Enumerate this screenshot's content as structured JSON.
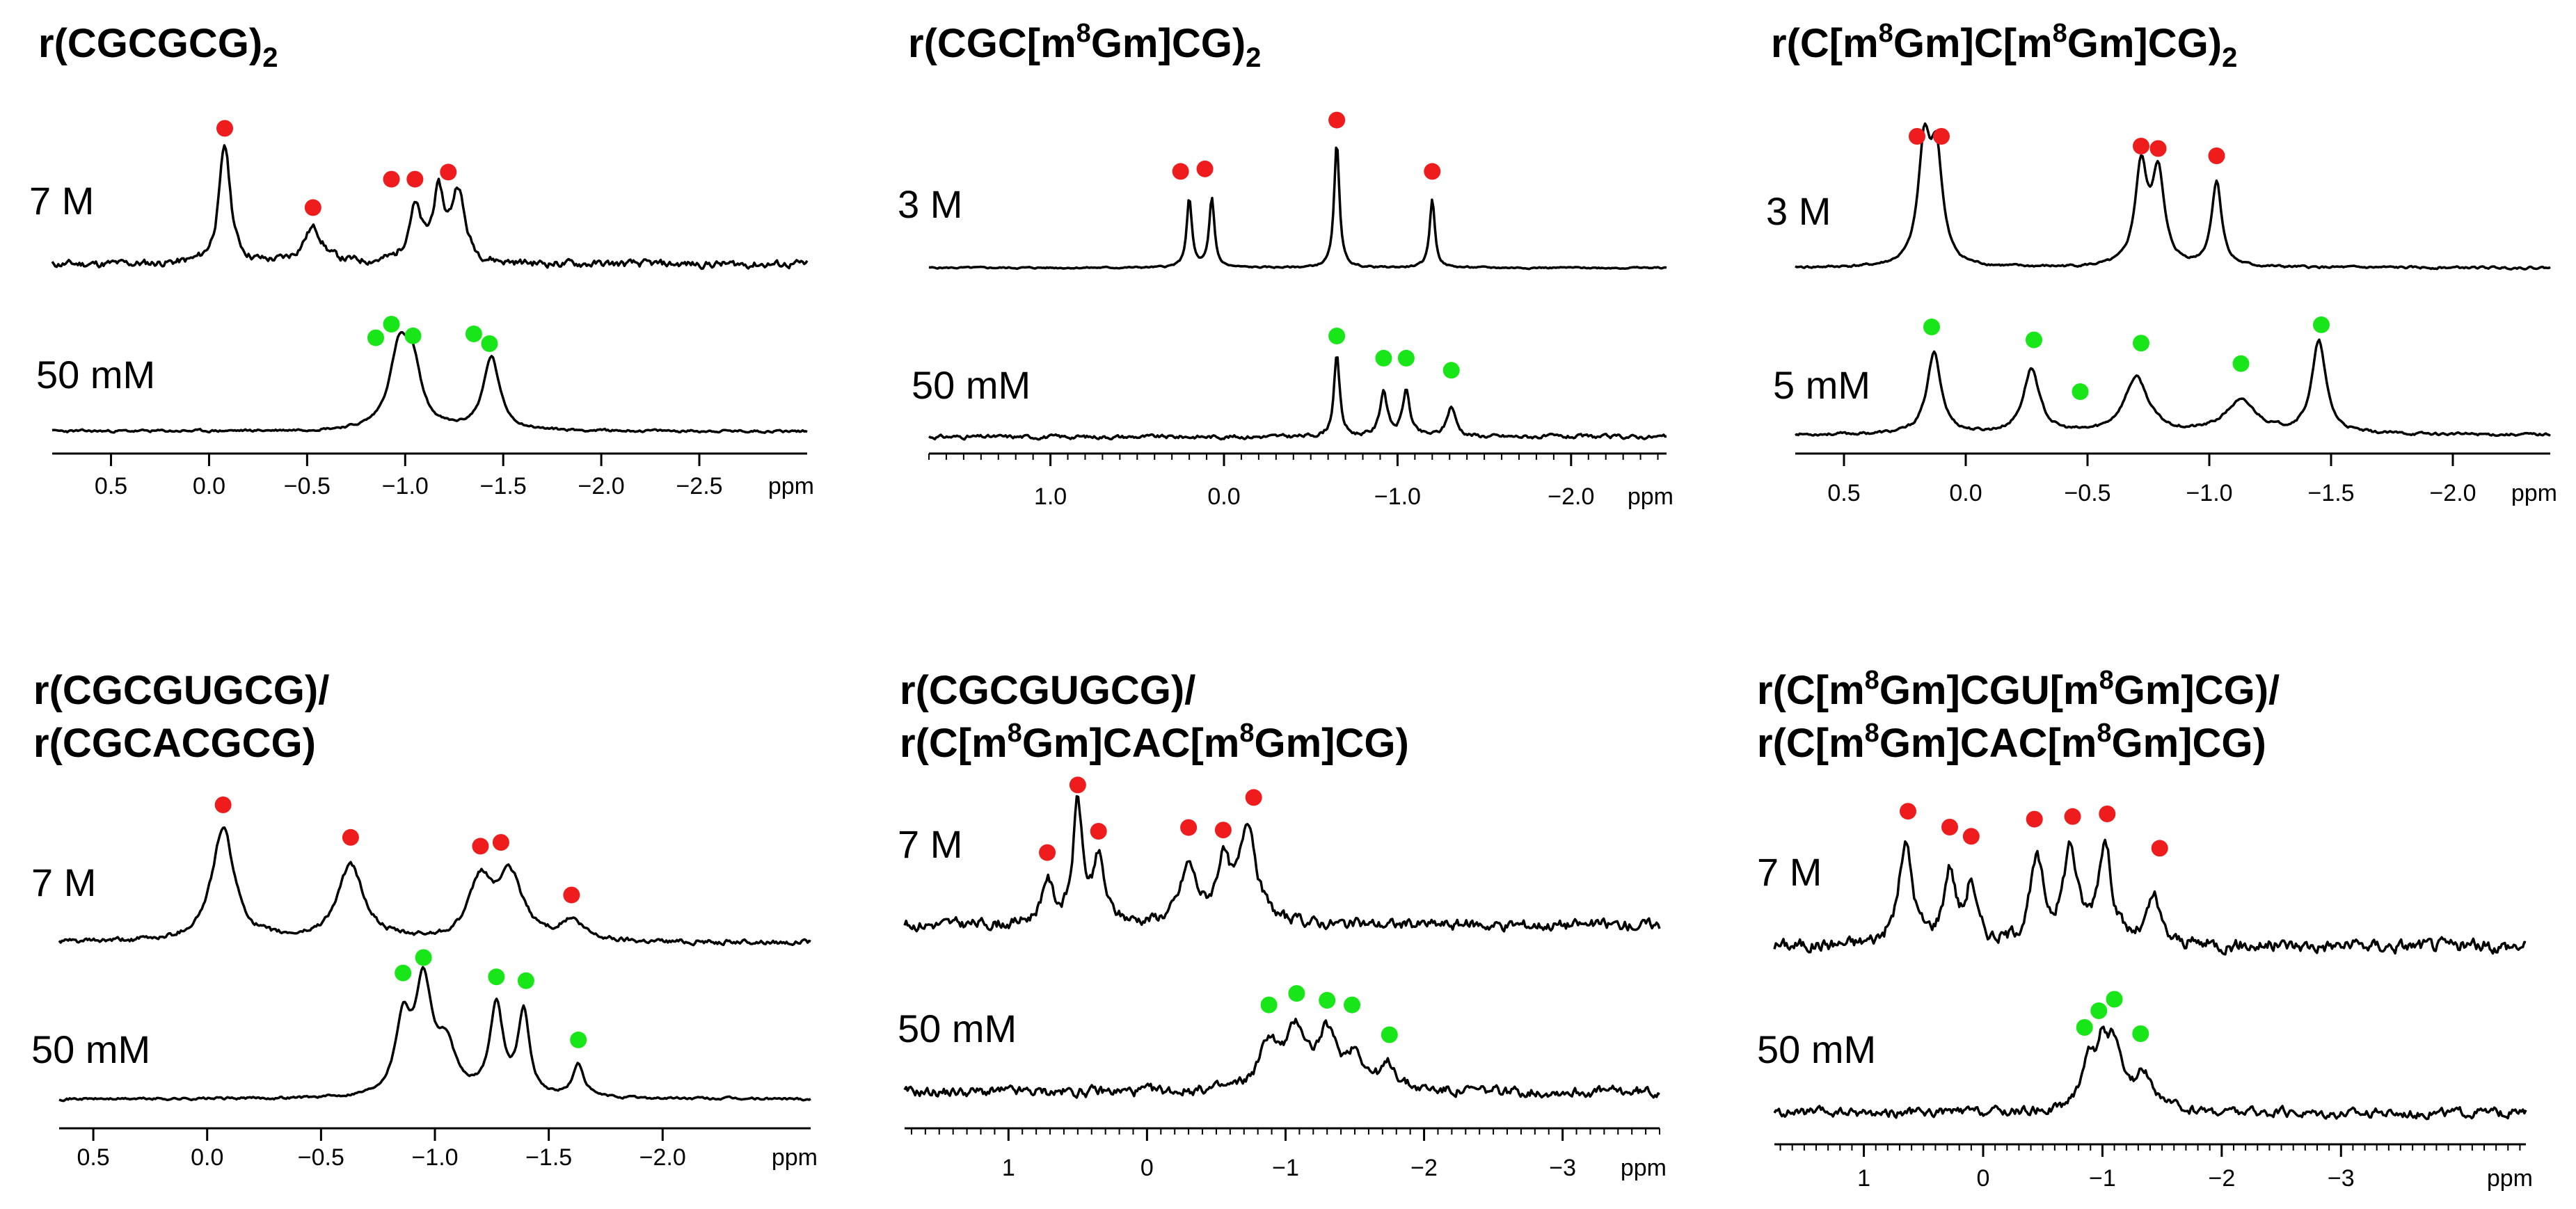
{
  "colors": {
    "proton_red": "#ee1c1c",
    "proton_green": "#19e619",
    "trace": "#000000"
  },
  "chart_data": [
    {
      "type": "line",
      "panel": "top-left",
      "title": {
        "pre": "r(CGCGCG)",
        "sub": "2"
      },
      "xlabel": "ppm",
      "xlim": [
        0.8,
        -3.05
      ],
      "ticks": [
        0.5,
        0.0,
        -0.5,
        -1.0,
        -1.5,
        -2.0,
        -2.5
      ],
      "tick_labels": [
        "0.5",
        "0.0",
        "−0.5",
        "−1.0",
        "−1.5",
        "−2.0",
        "−2.5"
      ],
      "minor_ticks": false,
      "series": [
        {
          "name": "7 M",
          "marker": "red",
          "noise": 0.05,
          "seed": 11,
          "peaks": [
            [
              -0.08,
              1.0,
              0.035
            ],
            [
              -0.53,
              0.3,
              0.06
            ],
            [
              -1.05,
              0.45,
              0.04
            ],
            [
              -1.17,
              0.55,
              0.035
            ],
            [
              -1.27,
              0.6,
              0.04
            ]
          ],
          "dots": [
            [
              -0.08,
              1.15
            ],
            [
              -0.53,
              0.48
            ],
            [
              -0.93,
              0.72
            ],
            [
              -1.05,
              0.72
            ],
            [
              -1.22,
              0.78
            ]
          ]
        },
        {
          "name": "50 mM",
          "marker": "green",
          "noise": 0.02,
          "seed": 23,
          "peaks": [
            [
              -0.97,
              0.8,
              0.06
            ],
            [
              -1.04,
              0.55,
              0.05
            ],
            [
              -1.44,
              0.75,
              0.05
            ]
          ],
          "dots": [
            [
              -0.85,
              0.96
            ],
            [
              -0.93,
              1.1
            ],
            [
              -1.04,
              0.98
            ],
            [
              -1.35,
              1.0
            ],
            [
              -1.43,
              0.9
            ]
          ]
        }
      ]
    },
    {
      "type": "line",
      "panel": "top-middle",
      "title": {
        "pre": "r(CGC[m",
        "sup": "8",
        "post": "Gm]CG)",
        "sub": "2"
      },
      "xlabel": "ppm",
      "xlim": [
        1.7,
        -2.55
      ],
      "ticks": [
        1.0,
        0.0,
        -1.0,
        -2.0
      ],
      "tick_labels": [
        "1.0",
        "0.0",
        "−1.0",
        "−2.0"
      ],
      "minor_ticks": true,
      "series": [
        {
          "name": "3 M",
          "marker": "red",
          "noise": 0.01,
          "seed": 5,
          "peaks": [
            [
              0.2,
              0.55,
              0.018
            ],
            [
              0.07,
              0.55,
              0.018
            ],
            [
              -0.65,
              1.0,
              0.018
            ],
            [
              -1.2,
              0.55,
              0.018
            ]
          ],
          "dots": [
            [
              0.25,
              0.77
            ],
            [
              0.11,
              0.79
            ],
            [
              -0.65,
              1.18
            ],
            [
              -1.2,
              0.77
            ]
          ]
        },
        {
          "name": "50 mM",
          "marker": "green",
          "noise": 0.03,
          "seed": 31,
          "peaks": [
            [
              -0.65,
              0.8,
              0.02
            ],
            [
              -0.92,
              0.45,
              0.025
            ],
            [
              -1.05,
              0.45,
              0.025
            ],
            [
              -1.31,
              0.3,
              0.03
            ]
          ],
          "dots": [
            [
              -0.65,
              1.0
            ],
            [
              -0.92,
              0.78
            ],
            [
              -1.05,
              0.78
            ],
            [
              -1.31,
              0.66
            ]
          ]
        }
      ]
    },
    {
      "type": "line",
      "panel": "top-right",
      "title": {
        "pre": "r(C[m",
        "sup": "8",
        "post": "Gm]C[m",
        "sup2": "8",
        "post2": "Gm]CG)",
        "sub": "2"
      },
      "xlabel": "ppm",
      "xlim": [
        0.7,
        -2.4
      ],
      "ticks": [
        0.5,
        0.0,
        -0.5,
        -1.0,
        -1.5,
        -2.0
      ],
      "tick_labels": [
        "0.5",
        "0.0",
        "−0.5",
        "−1.0",
        "−1.5",
        "−2.0"
      ],
      "minor_ticks": false,
      "series": [
        {
          "name": "3 M",
          "marker": "red",
          "noise": 0.015,
          "seed": 41,
          "peaks": [
            [
              0.17,
              0.95,
              0.03
            ],
            [
              0.12,
              0.85,
              0.03
            ],
            [
              -0.72,
              0.8,
              0.03
            ],
            [
              -0.79,
              0.75,
              0.03
            ],
            [
              -1.03,
              0.7,
              0.025
            ]
          ],
          "dots": [
            [
              0.2,
              1.08
            ],
            [
              0.1,
              1.08
            ],
            [
              -0.72,
              1.0
            ],
            [
              -0.79,
              0.98
            ],
            [
              -1.03,
              0.92
            ]
          ]
        },
        {
          "name": "5 mM",
          "marker": "green",
          "noise": 0.02,
          "seed": 53,
          "peaks": [
            [
              0.13,
              0.75,
              0.035
            ],
            [
              -0.27,
              0.6,
              0.04
            ],
            [
              -0.7,
              0.52,
              0.06
            ],
            [
              -1.13,
              0.3,
              0.08
            ],
            [
              -1.45,
              0.85,
              0.035
            ]
          ],
          "dots": [
            [
              0.14,
              1.0
            ],
            [
              -0.28,
              0.88
            ],
            [
              -0.47,
              0.4
            ],
            [
              -0.72,
              0.85
            ],
            [
              -1.13,
              0.66
            ],
            [
              -1.46,
              1.02
            ]
          ]
        }
      ]
    },
    {
      "type": "line",
      "panel": "bottom-left",
      "title": {
        "line1": "r(CGCGUGCG)/",
        "line2": "r(CGCACGCG)"
      },
      "xlabel": "ppm",
      "xlim": [
        0.65,
        -2.65
      ],
      "ticks": [
        0.5,
        0.0,
        -0.5,
        -1.0,
        -1.5,
        -2.0
      ],
      "tick_labels": [
        "0.5",
        "0.0",
        "−0.5",
        "−1.0",
        "−1.5",
        "−2.0"
      ],
      "minor_ticks": false,
      "series": [
        {
          "name": "7 M",
          "marker": "red",
          "noise": 0.03,
          "seed": 61,
          "peaks": [
            [
              -0.07,
              0.9,
              0.06
            ],
            [
              -0.63,
              0.6,
              0.07
            ],
            [
              -1.2,
              0.45,
              0.06
            ],
            [
              -1.33,
              0.5,
              0.07
            ],
            [
              -1.6,
              0.15,
              0.06
            ]
          ],
          "dots": [
            [
              -0.07,
              1.1
            ],
            [
              -0.63,
              0.84
            ],
            [
              -1.2,
              0.77
            ],
            [
              -1.29,
              0.8
            ],
            [
              -1.6,
              0.38
            ]
          ]
        },
        {
          "name": "50 mM",
          "marker": "green",
          "noise": 0.015,
          "seed": 71,
          "peaks": [
            [
              -0.86,
              0.55,
              0.04
            ],
            [
              -0.95,
              0.85,
              0.045
            ],
            [
              -1.05,
              0.35,
              0.05
            ],
            [
              -1.27,
              0.7,
              0.035
            ],
            [
              -1.39,
              0.65,
              0.03
            ],
            [
              -1.63,
              0.25,
              0.03
            ]
          ],
          "dots": [
            [
              -0.86,
              0.98
            ],
            [
              -0.95,
              1.1
            ],
            [
              -1.27,
              0.95
            ],
            [
              -1.4,
              0.92
            ],
            [
              -1.63,
              0.46
            ]
          ]
        }
      ]
    },
    {
      "type": "line",
      "panel": "bottom-middle",
      "title": {
        "line1": "r(CGCGUGCG)/",
        "line2_pre": "r(C[m",
        "sup": "8",
        "line2_mid": "Gm]CAC[m",
        "sup2": "8",
        "line2_post": "Gm]CG)"
      },
      "xlabel": "ppm",
      "xlim": [
        1.75,
        -3.7
      ],
      "ticks": [
        1,
        0,
        -1,
        -2,
        -3
      ],
      "tick_labels": [
        "1",
        "0",
        "−1",
        "−2",
        "−3"
      ],
      "minor_ticks": true,
      "series": [
        {
          "name": "7 M",
          "marker": "red",
          "noise": 0.07,
          "seed": 81,
          "peaks": [
            [
              0.72,
              0.35,
              0.05
            ],
            [
              0.5,
              0.95,
              0.04
            ],
            [
              0.35,
              0.5,
              0.05
            ],
            [
              -0.3,
              0.45,
              0.07
            ],
            [
              -0.55,
              0.45,
              0.06
            ],
            [
              -0.73,
              0.8,
              0.07
            ]
          ],
          "dots": [
            [
              0.72,
              0.58
            ],
            [
              0.5,
              1.12
            ],
            [
              0.35,
              0.75
            ],
            [
              -0.3,
              0.78
            ],
            [
              -0.55,
              0.76
            ],
            [
              -0.77,
              1.02
            ]
          ]
        },
        {
          "name": "50 mM",
          "marker": "green",
          "noise": 0.07,
          "seed": 91,
          "peaks": [
            [
              -0.88,
              0.4,
              0.08
            ],
            [
              -1.08,
              0.5,
              0.09
            ],
            [
              -1.3,
              0.45,
              0.08
            ],
            [
              -1.5,
              0.3,
              0.08
            ],
            [
              -1.75,
              0.2,
              0.07
            ]
          ],
          "dots": [
            [
              -0.88,
              0.76
            ],
            [
              -1.08,
              0.86
            ],
            [
              -1.3,
              0.8
            ],
            [
              -1.48,
              0.76
            ],
            [
              -1.75,
              0.5
            ]
          ]
        }
      ]
    },
    {
      "type": "line",
      "panel": "bottom-right",
      "title": {
        "line1_pre": "r(C[m",
        "sup": "8",
        "line1_mid": "Gm]CGU[m",
        "sup2": "8",
        "line1_post": "Gm]CG)/",
        "line2_pre": "r(C[m",
        "sup3": "8",
        "line2_mid": "Gm]CAC[m",
        "sup4": "8",
        "line2_post": "Gm]CG)"
      },
      "xlabel": "ppm",
      "xlim": [
        1.75,
        -4.55
      ],
      "ticks": [
        1,
        0,
        -1,
        -2,
        -3
      ],
      "tick_labels": [
        "1",
        "0",
        "−1",
        "−2",
        "−3"
      ],
      "minor_ticks": true,
      "series": [
        {
          "name": "7 M",
          "marker": "red",
          "noise": 0.08,
          "seed": 101,
          "peaks": [
            [
              0.65,
              0.75,
              0.07
            ],
            [
              0.28,
              0.55,
              0.06
            ],
            [
              0.1,
              0.45,
              0.05
            ],
            [
              -0.45,
              0.6,
              0.07
            ],
            [
              -0.73,
              0.7,
              0.07
            ],
            [
              -1.02,
              0.75,
              0.07
            ],
            [
              -1.43,
              0.35,
              0.06
            ]
          ],
          "dots": [
            [
              0.63,
              1.02
            ],
            [
              0.28,
              0.9
            ],
            [
              0.1,
              0.83
            ],
            [
              -0.43,
              0.96
            ],
            [
              -0.75,
              0.98
            ],
            [
              -1.04,
              1.0
            ],
            [
              -1.48,
              0.74
            ]
          ]
        },
        {
          "name": "50 mM",
          "marker": "green",
          "noise": 0.07,
          "seed": 111,
          "peaks": [
            [
              -0.88,
              0.45,
              0.07
            ],
            [
              -1.0,
              0.5,
              0.06
            ],
            [
              -1.1,
              0.55,
              0.07
            ],
            [
              -1.35,
              0.35,
              0.1
            ]
          ],
          "dots": [
            [
              -0.85,
              0.82
            ],
            [
              -0.97,
              0.98
            ],
            [
              -1.1,
              1.09
            ],
            [
              -1.32,
              0.76
            ]
          ]
        }
      ]
    }
  ]
}
